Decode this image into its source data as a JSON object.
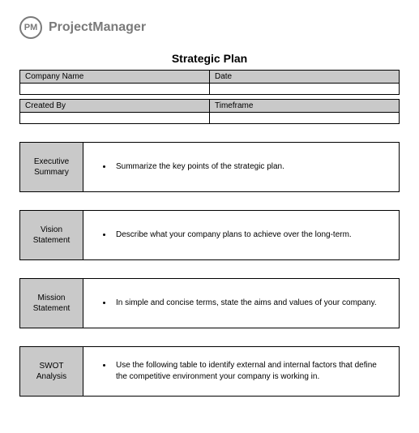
{
  "brand": {
    "logo_text": "PM",
    "name": "ProjectManager"
  },
  "title": "Strategic Plan",
  "meta": {
    "rows": [
      {
        "label": "Company Name",
        "value": "",
        "label2": "Date",
        "value2": ""
      },
      {
        "label": "Created By",
        "value": "",
        "label2": "Timeframe",
        "value2": ""
      }
    ]
  },
  "sections": [
    {
      "label": "Executive Summary",
      "bullet": "Summarize the key points of the strategic plan."
    },
    {
      "label": "Vision Statement",
      "bullet": "Describe what your company plans to achieve over the long-term."
    },
    {
      "label": "Mission Statement",
      "bullet": "In simple and concise terms, state the aims and values of your company."
    },
    {
      "label": "SWOT Analysis",
      "bullet": "Use the following table to identify external and internal factors that define the competitive environment your company is working in."
    }
  ],
  "colors": {
    "header_gray": "#c9c9c9",
    "border": "#000000",
    "brand_gray": "#7a7a7a",
    "background": "#ffffff"
  },
  "fonts": {
    "title_size_pt": 14,
    "body_size_pt": 10,
    "brand_size_pt": 16
  }
}
